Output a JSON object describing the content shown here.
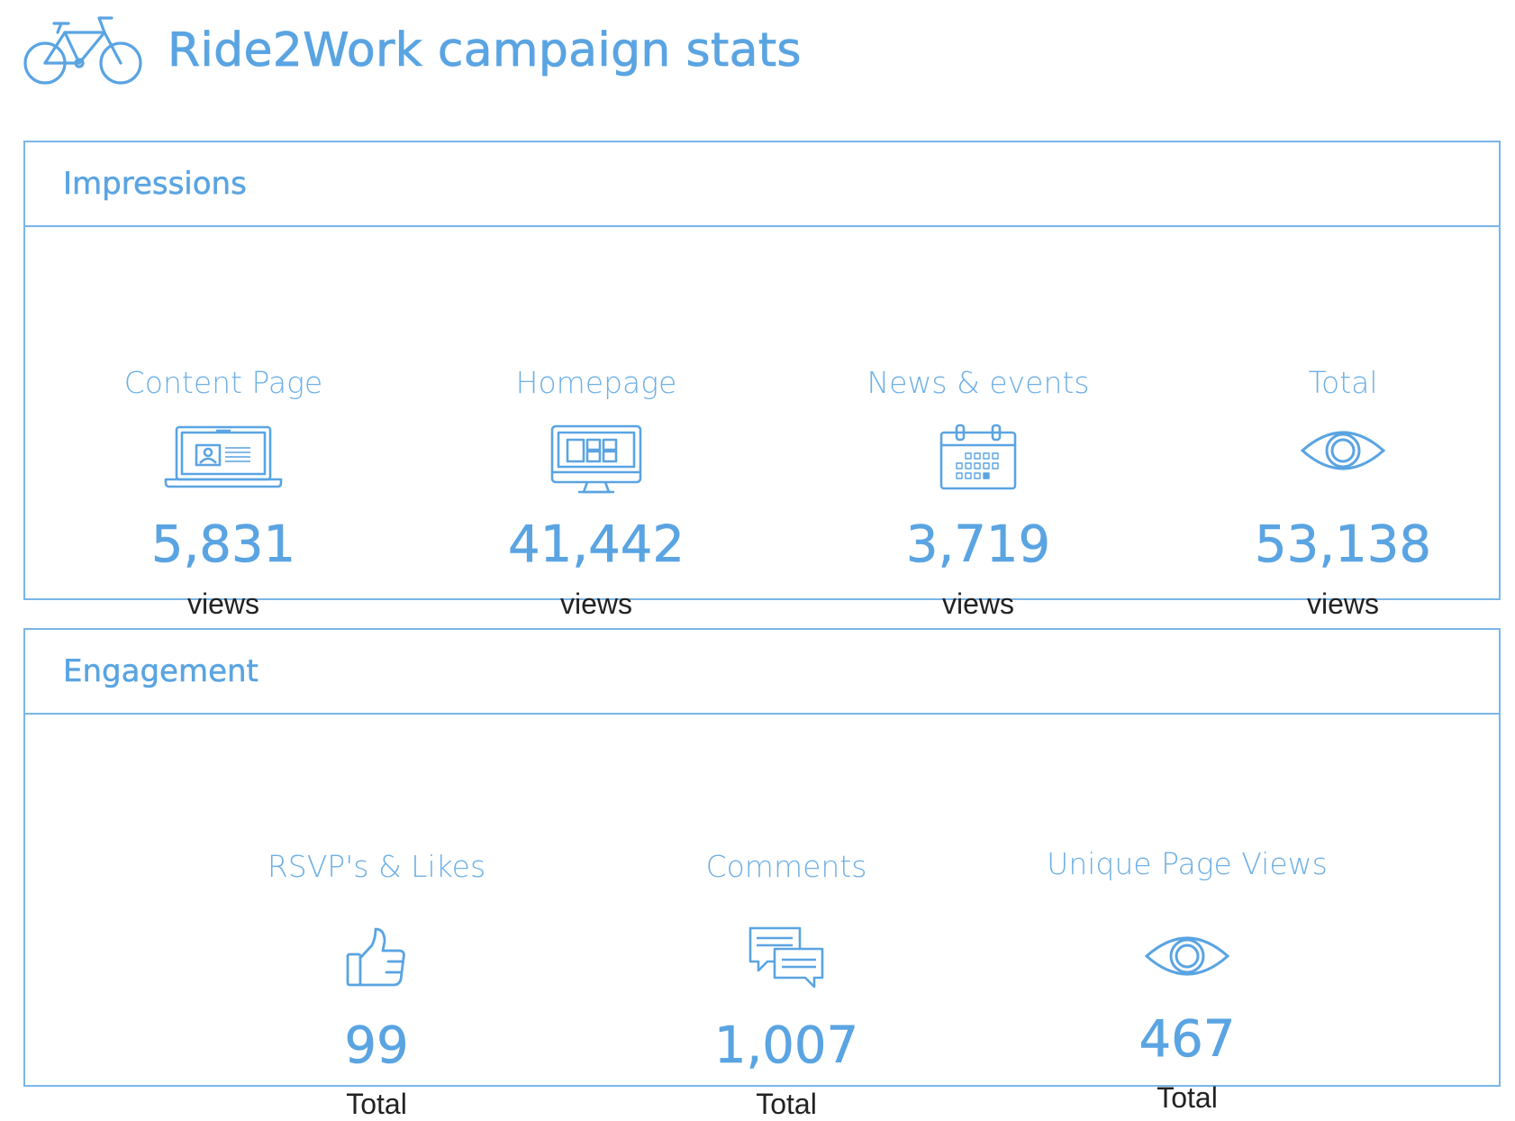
{
  "header": {
    "title": "Ride2Work campaign stats",
    "icon": "bicycle-icon"
  },
  "colors": {
    "accent": "#5aa4e2",
    "border": "#7ab6e8",
    "text_dark": "#222222"
  },
  "impressions": {
    "title": "Impressions",
    "items": [
      {
        "label": "Content Page",
        "value": "5,831",
        "unit": "views",
        "icon": "laptop-icon"
      },
      {
        "label": "Homepage",
        "value": "41,442",
        "unit": "views",
        "icon": "desktop-monitor-icon"
      },
      {
        "label": "News & events",
        "value": "3,719",
        "unit": "views",
        "icon": "calendar-icon"
      },
      {
        "label": "Total",
        "value": "53,138",
        "unit": "views",
        "icon": "eye-icon"
      }
    ]
  },
  "engagement": {
    "title": "Engagement",
    "items": [
      {
        "label": "RSVP's & Likes",
        "value": "99",
        "unit": "Total",
        "icon": "thumbs-up-icon"
      },
      {
        "label": "Comments",
        "value": "1,007",
        "unit": "Total",
        "icon": "speech-bubbles-icon"
      },
      {
        "label": "Unique Page Views",
        "value": "467",
        "unit": "Total",
        "icon": "eye-icon"
      }
    ]
  }
}
